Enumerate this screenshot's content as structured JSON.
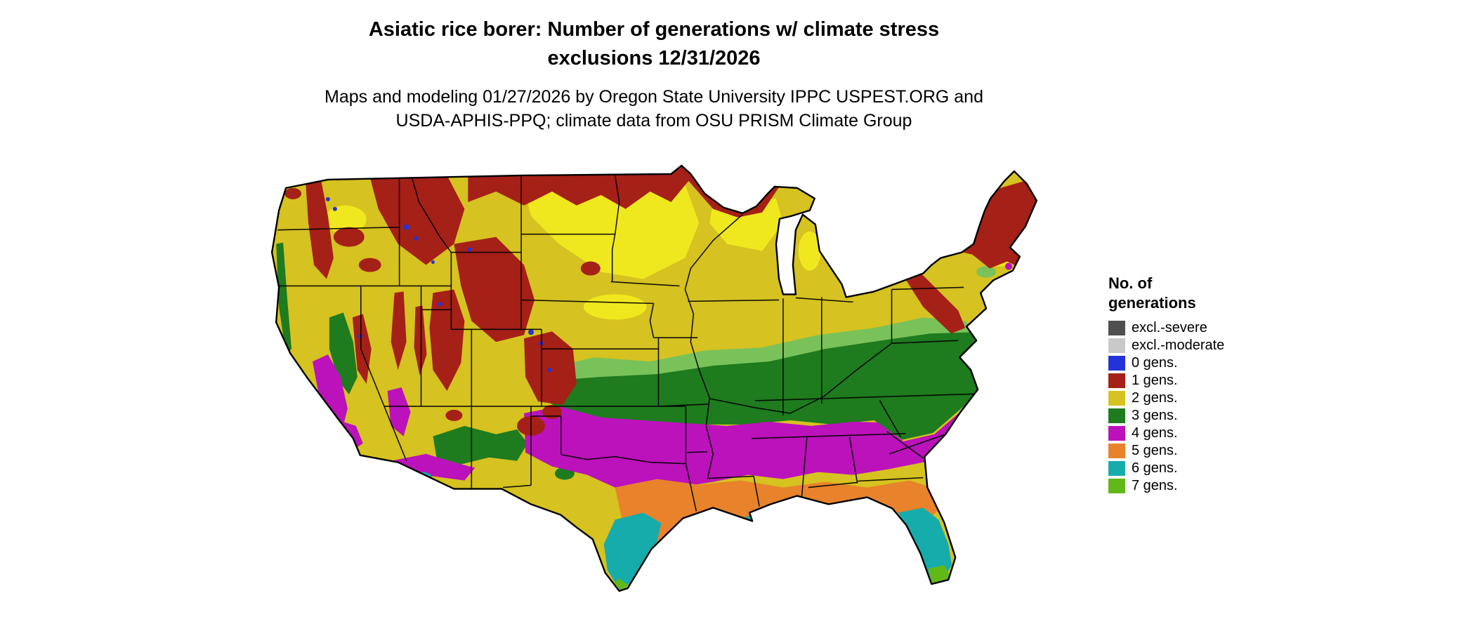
{
  "title": {
    "line1": "Asiatic rice borer: Number of generations w/ climate stress",
    "line2": "exclusions 12/31/2026"
  },
  "subtitle": {
    "line1": "Maps and modeling 01/27/2026 by Oregon State University IPPC USPEST.ORG and",
    "line2": "USDA-APHIS-PPQ; climate data from OSU PRISM Climate Group"
  },
  "legend": {
    "title_line1": "No. of",
    "title_line2": "generations",
    "items": [
      {
        "key": "excl-severe",
        "label": "excl.-severe",
        "color": "#4f4f4f"
      },
      {
        "key": "excl-moderate",
        "label": "excl.-moderate",
        "color": "#c9c9c9"
      },
      {
        "key": "gens-0",
        "label": "0 gens.",
        "color": "#2433d9"
      },
      {
        "key": "gens-1",
        "label": "1 gens.",
        "color": "#a52017"
      },
      {
        "key": "gens-2",
        "label": "2 gens.",
        "color": "#d6c220"
      },
      {
        "key": "gens-3",
        "label": "3 gens.",
        "color": "#1e7b1e"
      },
      {
        "key": "gens-4",
        "label": "4 gens.",
        "color": "#bb12bb"
      },
      {
        "key": "gens-5",
        "label": "5 gens.",
        "color": "#e8822b"
      },
      {
        "key": "gens-6",
        "label": "6 gens.",
        "color": "#17acac"
      },
      {
        "key": "gens-7",
        "label": "7 gens.",
        "color": "#62b819"
      }
    ]
  },
  "map": {
    "region": "Continental United States",
    "aux_colors": {
      "bright-yellow": "#f0e81e",
      "light-green": "#79c25a",
      "outline": "#000000"
    }
  }
}
